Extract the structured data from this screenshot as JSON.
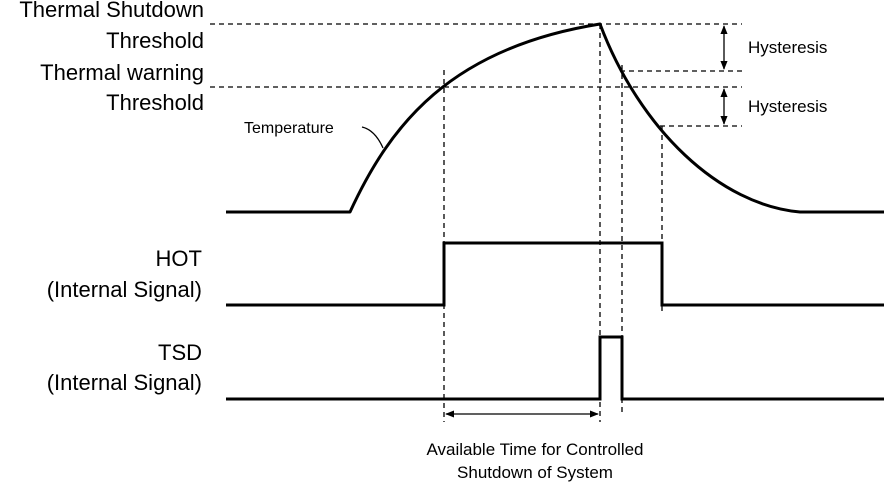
{
  "labels": {
    "tsd_threshold_line1": "Thermal Shutdown",
    "tsd_threshold_line2": "Threshold",
    "warning_threshold_line1": "Thermal warning",
    "warning_threshold_line2": "Threshold",
    "temperature": "Temperature",
    "hysteresis_upper": "Hysteresis",
    "hysteresis_lower": "Hysteresis",
    "hot_signal_line1": "HOT",
    "hot_signal_line2": "(Internal Signal)",
    "tsd_signal_line1": "TSD",
    "tsd_signal_line2": "(Internal Signal)",
    "available_time_line1": "Available Time for Controlled",
    "available_time_line2": "Shutdown of System"
  },
  "colors": {
    "stroke": "#000000",
    "background": "#ffffff"
  }
}
